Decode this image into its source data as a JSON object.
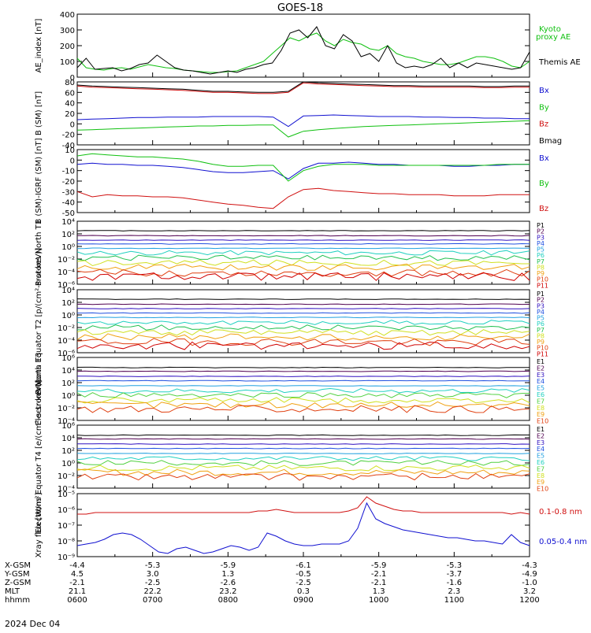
{
  "title": "GOES-18",
  "date": "2024 Dec 04",
  "colors": {
    "black": "#000000",
    "red": "#d01010",
    "green": "#10c010",
    "blue": "#1010d0",
    "cyan": "#10d0d0",
    "orange": "#f07010",
    "yellow": "#d0d010",
    "p": [
      "#000000",
      "#500050",
      "#3010c0",
      "#2050e0",
      "#20a0e0",
      "#20d0c0",
      "#20c050",
      "#d0e020",
      "#f0a010",
      "#e04010",
      "#d00000"
    ],
    "e": [
      "#000000",
      "#500050",
      "#3010c0",
      "#2050e0",
      "#20a0e0",
      "#20d0c0",
      "#50d040",
      "#d0e020",
      "#f0a010",
      "#e04010",
      "#d00000"
    ]
  },
  "chart_data": [
    {
      "type": "line",
      "ylabel": "AE_index [nT]",
      "ylim": [
        0,
        400
      ],
      "yticks": [
        "400",
        "300",
        "200",
        "100",
        "0"
      ],
      "grid": false,
      "legend": "right",
      "series": [
        {
          "name": "Kyoto proxy AE",
          "color": "#10c010",
          "values": [
            120,
            60,
            50,
            45,
            55,
            60,
            50,
            65,
            80,
            70,
            60,
            55,
            45,
            40,
            35,
            30,
            30,
            35,
            40,
            60,
            80,
            100,
            150,
            200,
            250,
            230,
            260,
            280,
            230,
            200,
            240,
            220,
            210,
            180,
            170,
            200,
            150,
            130,
            120,
            100,
            90,
            80,
            80,
            90,
            110,
            130,
            130,
            120,
            100,
            70,
            60,
            100
          ]
        },
        {
          "name": "Themis AE",
          "color": "#000000",
          "values": [
            60,
            120,
            50,
            55,
            60,
            40,
            55,
            80,
            90,
            140,
            100,
            60,
            45,
            40,
            30,
            20,
            30,
            40,
            30,
            50,
            60,
            80,
            90,
            170,
            280,
            300,
            250,
            320,
            200,
            180,
            270,
            230,
            130,
            150,
            100,
            200,
            90,
            60,
            70,
            60,
            80,
            120,
            60,
            90,
            60,
            90,
            80,
            70,
            60,
            50,
            60,
            160
          ]
        }
      ]
    },
    {
      "type": "line",
      "ylabel": "B (SM) [nT]",
      "ylim": [
        -40,
        80
      ],
      "yticks": [
        "80",
        "60",
        "40",
        "20",
        "0",
        "-20",
        "-40"
      ],
      "legend": "right",
      "series": [
        {
          "name": "Bx",
          "color": "#1010d0",
          "values": [
            8,
            9,
            10,
            11,
            12,
            12,
            13,
            13,
            13,
            14,
            14,
            14,
            14,
            13,
            -5,
            15,
            16,
            17,
            16,
            15,
            14,
            14,
            14,
            13,
            13,
            12,
            12,
            11,
            11,
            10,
            10
          ]
        },
        {
          "name": "By",
          "color": "#10c010",
          "values": [
            -12,
            -11,
            -10,
            -9,
            -8,
            -7,
            -6,
            -5,
            -4,
            -4,
            -3,
            -3,
            -2,
            -2,
            -25,
            -14,
            -11,
            -9,
            -7,
            -5,
            -4,
            -3,
            -2,
            -1,
            0,
            1,
            2,
            3,
            4,
            5,
            6
          ]
        },
        {
          "name": "Bz",
          "color": "#d01010",
          "values": [
            72,
            70,
            69,
            68,
            67,
            66,
            65,
            64,
            62,
            60,
            60,
            59,
            58,
            58,
            60,
            78,
            76,
            75,
            74,
            73,
            72,
            71,
            71,
            70,
            70,
            70,
            70,
            69,
            69,
            70,
            70
          ]
        },
        {
          "name": "Bmag",
          "color": "#000000",
          "values": [
            74,
            72,
            71,
            70,
            69,
            68,
            67,
            66,
            64,
            62,
            62,
            61,
            60,
            60,
            62,
            80,
            78,
            77,
            76,
            75,
            74,
            73,
            73,
            72,
            72,
            72,
            72,
            71,
            71,
            72,
            72
          ]
        }
      ]
    },
    {
      "type": "line",
      "ylabel": "B (SM)-IGRF (SM) [nT]",
      "ylim": [
        -50,
        10
      ],
      "yticks": [
        "10",
        "0",
        "-10",
        "-20",
        "-30",
        "-40",
        "-50"
      ],
      "legend": "right",
      "series": [
        {
          "name": "Bx",
          "color": "#1010d0",
          "values": [
            -4,
            -3,
            -4,
            -4,
            -5,
            -5,
            -6,
            -7,
            -9,
            -11,
            -12,
            -12,
            -11,
            -10,
            -18,
            -8,
            -3,
            -3,
            -2,
            -3,
            -4,
            -4,
            -5,
            -5,
            -5,
            -6,
            -6,
            -5,
            -5,
            -4,
            -4
          ]
        },
        {
          "name": "By",
          "color": "#10c010",
          "values": [
            4,
            6,
            5,
            4,
            3,
            3,
            2,
            1,
            -1,
            -4,
            -6,
            -6,
            -5,
            -5,
            -20,
            -10,
            -6,
            -4,
            -4,
            -4,
            -5,
            -5,
            -5,
            -5,
            -5,
            -5,
            -5,
            -5,
            -4,
            -4,
            -4
          ]
        },
        {
          "name": "Bz",
          "color": "#d01010",
          "values": [
            -30,
            -35,
            -33,
            -34,
            -34,
            -35,
            -35,
            -36,
            -38,
            -40,
            -42,
            -43,
            -45,
            -46,
            -35,
            -28,
            -27,
            -29,
            -30,
            -31,
            -32,
            -32,
            -33,
            -33,
            -33,
            -34,
            -34,
            -34,
            -33,
            -33,
            -33
          ]
        }
      ]
    },
    {
      "type": "line",
      "ylabel": "Protons North T1",
      "yscale": "log",
      "ylim": [
        -6,
        4
      ],
      "yticks": [
        "10⁴",
        "10²",
        "10⁰",
        "10⁻²",
        "10⁻⁴",
        "10⁻⁶"
      ],
      "legend": "right",
      "series_names": [
        "P1",
        "P2",
        "P3",
        "P4",
        "P5",
        "P6",
        "P7",
        "P8",
        "P9",
        "P10",
        "P11"
      ],
      "log_levels": [
        2.5,
        1.7,
        1.0,
        0.4,
        -0.3,
        -1.0,
        -1.8,
        -2.6,
        -3.3,
        -4.2,
        -4.8
      ]
    },
    {
      "type": "line",
      "ylabel": "Protons Equator T2 [p/(cm²-s-sr-keV)]",
      "yscale": "log",
      "ylim": [
        -6,
        4
      ],
      "yticks": [
        "10⁴",
        "10²",
        "10⁰",
        "10⁻²",
        "10⁻⁴",
        "10⁻⁶"
      ],
      "legend": "right",
      "series_names": [
        "P1",
        "P2",
        "P3",
        "P4",
        "P5",
        "P6",
        "P7",
        "P8",
        "P9",
        "P10",
        "P11"
      ],
      "log_levels": [
        2.5,
        1.7,
        1.0,
        0.3,
        -0.4,
        -1.2,
        -2.0,
        -2.8,
        -3.5,
        -4.3,
        -4.9
      ]
    },
    {
      "type": "line",
      "ylabel": "Electrons North T3",
      "yscale": "log",
      "ylim": [
        -4,
        6
      ],
      "yticks": [
        "10⁶",
        "10⁴",
        "10²",
        "10⁰",
        "10⁻²",
        "10⁻⁴"
      ],
      "legend": "right",
      "series_names": [
        "E1",
        "E2",
        "E3",
        "E4",
        "E5",
        "E6",
        "E7",
        "E8",
        "E9",
        "E10"
      ],
      "log_levels": [
        4.4,
        3.8,
        3.0,
        2.3,
        1.5,
        0.7,
        0.0,
        -0.8,
        -1.5,
        -2.2
      ]
    },
    {
      "type": "line",
      "ylabel": "Electrons Equator T4 [e/(cm²-s-sr-keV)]",
      "yscale": "log",
      "ylim": [
        -4,
        6
      ],
      "yticks": [
        "10⁶",
        "10⁴",
        "10²",
        "10⁰",
        "10⁻²",
        "10⁻⁴"
      ],
      "legend": "right",
      "series_names": [
        "E1",
        "E2",
        "E3",
        "E4",
        "E5",
        "E6",
        "E7",
        "E8",
        "E9",
        "E10"
      ],
      "log_levels": [
        4.4,
        3.8,
        3.0,
        2.3,
        1.5,
        0.7,
        0.0,
        -0.8,
        -1.5,
        -2.2
      ]
    },
    {
      "type": "line",
      "ylabel": "Xray flux [W/m²]",
      "yscale": "log",
      "ylim": [
        -9,
        -5
      ],
      "yticks": [
        "10⁻⁵",
        "10⁻⁶",
        "10⁻⁷",
        "10⁻⁸",
        "10⁻⁹"
      ],
      "legend": "right",
      "series": [
        {
          "name": "0.1-0.8 nm",
          "color": "#d01010",
          "values": [
            -6.3,
            -6.3,
            -6.2,
            -6.2,
            -6.2,
            -6.2,
            -6.2,
            -6.2,
            -6.2,
            -6.2,
            -6.2,
            -6.2,
            -6.2,
            -6.2,
            -6.2,
            -6.2,
            -6.2,
            -6.2,
            -6.2,
            -6.2,
            -6.1,
            -6.1,
            -6.0,
            -6.1,
            -6.2,
            -6.2,
            -6.2,
            -6.2,
            -6.2,
            -6.2,
            -6.1,
            -5.9,
            -5.2,
            -5.6,
            -5.8,
            -6.0,
            -6.1,
            -6.1,
            -6.2,
            -6.2,
            -6.2,
            -6.2,
            -6.2,
            -6.2,
            -6.2,
            -6.2,
            -6.2,
            -6.2,
            -6.3,
            -6.2,
            -6.3
          ]
        },
        {
          "name": "0.05-0.4 nm",
          "color": "#1010d0",
          "values": [
            -8.3,
            -8.2,
            -8.1,
            -7.9,
            -7.6,
            -7.5,
            -7.6,
            -7.9,
            -8.3,
            -8.7,
            -8.8,
            -8.5,
            -8.4,
            -8.6,
            -8.8,
            -8.7,
            -8.5,
            -8.3,
            -8.4,
            -8.6,
            -8.4,
            -7.5,
            -7.7,
            -8.0,
            -8.2,
            -8.3,
            -8.3,
            -8.2,
            -8.2,
            -8.2,
            -8.0,
            -7.2,
            -5.6,
            -6.6,
            -6.9,
            -7.1,
            -7.3,
            -7.4,
            -7.5,
            -7.6,
            -7.7,
            -7.8,
            -7.8,
            -7.9,
            -8.0,
            -8.0,
            -8.1,
            -8.2,
            -7.6,
            -8.1,
            -8.3
          ]
        }
      ]
    }
  ],
  "ephemeris": {
    "row_labels": [
      "X-GSM",
      "Y-GSM",
      "Z-GSM",
      "MLT",
      "hhmm"
    ],
    "columns": [
      {
        "x": "-4.4",
        "y": "4.5",
        "z": "-2.1",
        "mlt": "21.1",
        "hhmm": "0600"
      },
      {
        "x": "-5.3",
        "y": "3.0",
        "z": "-2.5",
        "mlt": "22.2",
        "hhmm": "0700"
      },
      {
        "x": "-5.9",
        "y": "1.3",
        "z": "-2.6",
        "mlt": "23.2",
        "hhmm": "0800"
      },
      {
        "x": "-6.1",
        "y": "-0.5",
        "z": "-2.5",
        "mlt": "0.3",
        "hhmm": "0900"
      },
      {
        "x": "-5.9",
        "y": "-2.1",
        "z": "-2.1",
        "mlt": "1.3",
        "hhmm": "1000"
      },
      {
        "x": "-5.3",
        "y": "-3.7",
        "z": "-1.6",
        "mlt": "2.3",
        "hhmm": "1100"
      },
      {
        "x": "-4.3",
        "y": "-4.9",
        "z": "-1.0",
        "mlt": "3.2",
        "hhmm": "1200"
      }
    ]
  }
}
